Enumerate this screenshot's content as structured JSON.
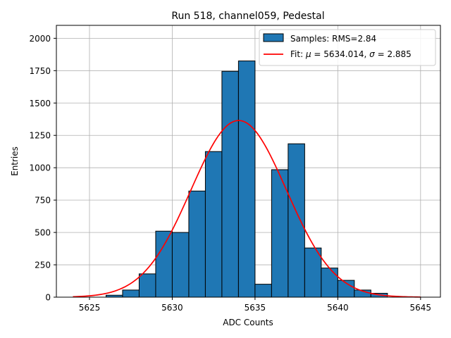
{
  "chart_data": {
    "type": "bar",
    "title": "Run 518, channel059, Pedestal",
    "xlabel": "ADC Counts",
    "ylabel": "Entries",
    "xlim": [
      5623.0,
      5646.2
    ],
    "ylim": [
      0,
      2100
    ],
    "xticks": [
      5625,
      5630,
      5635,
      5640,
      5645
    ],
    "yticks": [
      0,
      250,
      500,
      750,
      1000,
      1250,
      1500,
      1750,
      2000
    ],
    "grid": true,
    "legend_position": "top-right",
    "histogram": {
      "name": "Samples: RMS=2.84",
      "color": "#1f77b4",
      "edgecolor": "#000000",
      "bins": [
        {
          "x0": 5626,
          "x1": 5627,
          "value": 15
        },
        {
          "x0": 5627,
          "x1": 5628,
          "value": 55
        },
        {
          "x0": 5628,
          "x1": 5629,
          "value": 180
        },
        {
          "x0": 5629,
          "x1": 5630,
          "value": 510
        },
        {
          "x0": 5630,
          "x1": 5631,
          "value": 500
        },
        {
          "x0": 5631,
          "x1": 5632,
          "value": 820
        },
        {
          "x0": 5632,
          "x1": 5633,
          "value": 1125
        },
        {
          "x0": 5633,
          "x1": 5634,
          "value": 1745
        },
        {
          "x0": 5634,
          "x1": 5635,
          "value": 1825
        },
        {
          "x0": 5635,
          "x1": 5636,
          "value": 100
        },
        {
          "x0": 5636,
          "x1": 5637,
          "value": 985
        },
        {
          "x0": 5637,
          "x1": 5638,
          "value": 1185
        },
        {
          "x0": 5638,
          "x1": 5639,
          "value": 380
        },
        {
          "x0": 5639,
          "x1": 5640,
          "value": 225
        },
        {
          "x0": 5640,
          "x1": 5641,
          "value": 130
        },
        {
          "x0": 5641,
          "x1": 5642,
          "value": 55
        },
        {
          "x0": 5642,
          "x1": 5643,
          "value": 30
        }
      ]
    },
    "fit": {
      "name_prefix": "Fit: ",
      "mu_symbol": "μ",
      "mu_text": " = 5634.014, ",
      "sigma_symbol": "σ",
      "sigma_text": " = 2.885",
      "color": "#ff0000",
      "mu": 5634.014,
      "sigma": 2.885,
      "amplitude": 1365,
      "x_range": [
        5624,
        5645
      ]
    }
  }
}
